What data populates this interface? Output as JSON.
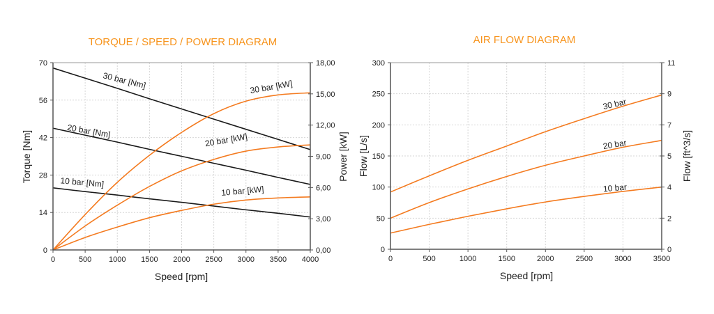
{
  "chart_data": [
    {
      "type": "line",
      "title": "TORQUE / SPEED / POWER DIAGRAM",
      "xlabel": "Speed [rpm]",
      "ylabel": "Torque [Nm]",
      "y2label": "Power [kW]",
      "xlim": [
        0,
        4000
      ],
      "ylim": [
        0,
        70
      ],
      "y2lim": [
        0,
        18
      ],
      "xticks": [
        "0",
        "500",
        "1000",
        "1500",
        "2000",
        "2500",
        "3000",
        "3500",
        "4000"
      ],
      "xtick_values": [
        0,
        500,
        1000,
        1500,
        2000,
        2500,
        3000,
        3500,
        4000
      ],
      "yticks": [
        "0",
        "14",
        "28",
        "42",
        "56",
        "70"
      ],
      "ytick_values": [
        0,
        14,
        28,
        42,
        56,
        70
      ],
      "y2ticks": [
        "0,00",
        "3,00",
        "6,00",
        "9,00",
        "12,00",
        "15,00",
        "18,00"
      ],
      "y2tick_values": [
        0,
        3,
        6,
        9,
        12,
        15,
        18
      ],
      "grid": true,
      "x": [
        0,
        500,
        1000,
        1500,
        2000,
        2500,
        3000,
        3500,
        4000
      ],
      "series": [
        {
          "name": "30 bar [Nm]",
          "axis": "left",
          "color": "#1a1a1a",
          "values": [
            68.0,
            64.2,
            60.4,
            56.5,
            52.7,
            48.9,
            45.1,
            41.3,
            37.5
          ]
        },
        {
          "name": "20 bar [Nm]",
          "axis": "left",
          "color": "#1a1a1a",
          "values": [
            45.5,
            42.9,
            40.3,
            37.6,
            35.0,
            32.4,
            29.8,
            27.1,
            24.5
          ]
        },
        {
          "name": "10 bar [Nm]",
          "axis": "left",
          "color": "#1a1a1a",
          "values": [
            23.2,
            21.8,
            20.5,
            19.1,
            17.8,
            16.4,
            15.0,
            13.7,
            12.3
          ]
        },
        {
          "name": "30 bar [kW]",
          "axis": "right",
          "color": "#f47b20",
          "values": [
            0,
            3.4,
            6.5,
            9.1,
            11.3,
            13.1,
            14.3,
            14.9,
            15.1
          ]
        },
        {
          "name": "20 bar [kW]",
          "axis": "right",
          "color": "#f47b20",
          "values": [
            0,
            2.3,
            4.3,
            6.1,
            7.6,
            8.7,
            9.5,
            9.9,
            10.1
          ]
        },
        {
          "name": "10 bar [kW]",
          "axis": "right",
          "color": "#f47b20",
          "values": [
            0,
            1.2,
            2.2,
            3.1,
            3.8,
            4.4,
            4.8,
            5.0,
            5.1
          ]
        }
      ],
      "labels": [
        {
          "text": "30 bar [Nm]",
          "x": 1100,
          "y": 62.3,
          "axis": "left",
          "angle": 14
        },
        {
          "text": "20 bar [Nm]",
          "x": 550,
          "y": 43.4,
          "axis": "left",
          "angle": 10
        },
        {
          "text": "10 bar [Nm]",
          "x": 450,
          "y": 24.2,
          "axis": "left",
          "angle": 5
        },
        {
          "text": "30 bar [kW]",
          "x": 3400,
          "y": 15.4,
          "axis": "right",
          "angle": -10
        },
        {
          "text": "20 bar [kW]",
          "x": 2700,
          "y": 10.3,
          "axis": "right",
          "angle": -10
        },
        {
          "text": "10 bar [kW]",
          "x": 2950,
          "y": 5.4,
          "axis": "right",
          "angle": -5
        }
      ]
    },
    {
      "type": "line",
      "title": "AIR FLOW DIAGRAM",
      "xlabel": "Speed [rpm]",
      "ylabel": "Flow [L/s]",
      "y2label": "Flow [ft^3/s]",
      "xlim": [
        0,
        3500
      ],
      "ylim": [
        0,
        300
      ],
      "xticks": [
        "0",
        "500",
        "1000",
        "1500",
        "2000",
        "2500",
        "3000",
        "3500"
      ],
      "xtick_values": [
        0,
        500,
        1000,
        1500,
        2000,
        2500,
        3000,
        3500
      ],
      "yticks": [
        "0",
        "50",
        "100",
        "150",
        "200",
        "250",
        "300"
      ],
      "ytick_values": [
        0,
        50,
        100,
        150,
        200,
        250,
        300
      ],
      "y2ticks": [
        "0",
        "2",
        "4",
        "5",
        "7",
        "9",
        "11"
      ],
      "y2tick_positions_in_left_units": [
        0,
        50,
        100,
        150,
        200,
        250,
        300
      ],
      "grid": true,
      "x": [
        0,
        500,
        1000,
        1500,
        2000,
        2500,
        3000,
        3500
      ],
      "series": [
        {
          "name": "30 bar",
          "color": "#f47b20",
          "values": [
            92,
            118,
            143,
            166,
            189,
            210,
            230,
            248
          ]
        },
        {
          "name": "20 bar",
          "color": "#f47b20",
          "values": [
            50,
            75,
            97,
            117,
            135,
            150,
            164,
            175
          ]
        },
        {
          "name": "10 bar",
          "color": "#f47b20",
          "values": [
            26,
            40,
            53,
            65,
            76,
            85,
            93,
            100
          ]
        }
      ],
      "labels": [
        {
          "text": "30 bar",
          "x": 2900,
          "y": 229,
          "angle": -13
        },
        {
          "text": "20 bar",
          "x": 2900,
          "y": 164,
          "angle": -9
        },
        {
          "text": "10 bar",
          "x": 2900,
          "y": 94,
          "angle": -5
        }
      ]
    }
  ]
}
